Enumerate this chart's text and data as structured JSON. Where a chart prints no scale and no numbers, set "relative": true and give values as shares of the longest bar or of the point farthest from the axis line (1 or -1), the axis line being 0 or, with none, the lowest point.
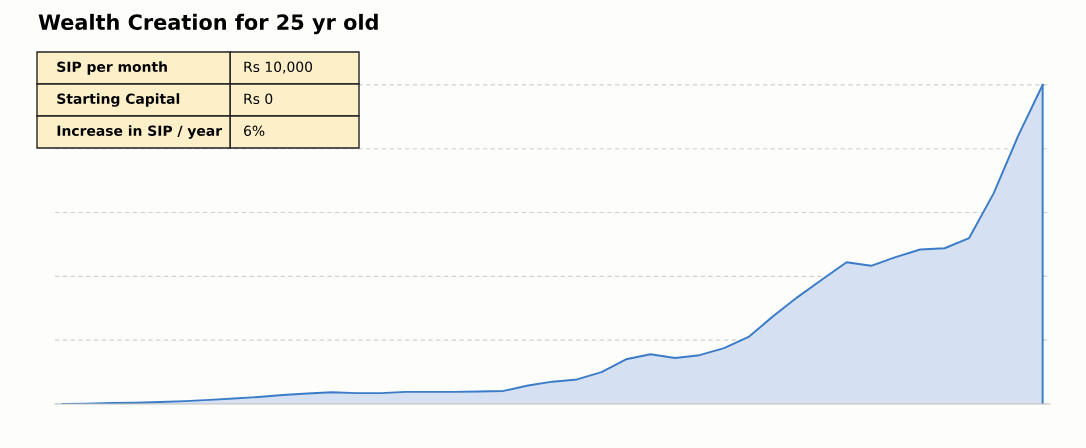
{
  "chart_data": {
    "type": "area",
    "title": "Wealth Creation for 25 yr old",
    "relative": true,
    "grid": "y",
    "color": "#3a7cc8",
    "categories": [
      null,
      null,
      null,
      null,
      null,
      null,
      null,
      null,
      null,
      null,
      null,
      null,
      null,
      null,
      null,
      null,
      null,
      null,
      null,
      null,
      null,
      null,
      null,
      null,
      null,
      null,
      null,
      null,
      null,
      null,
      null,
      null,
      null,
      null,
      null,
      null,
      null,
      null,
      null,
      null,
      null
    ],
    "values": [
      0,
      0.001,
      0.003,
      0.004,
      0.006,
      0.009,
      0.013,
      0.017,
      0.022,
      0.028,
      0.033,
      0.037,
      0.034,
      0.034,
      0.038,
      0.038,
      0.038,
      0.039,
      0.041,
      0.058,
      0.07,
      0.077,
      0.1,
      0.14,
      0.156,
      0.144,
      0.153,
      0.175,
      0.21,
      0.275,
      0.335,
      0.39,
      0.444,
      0.433,
      0.46,
      0.484,
      0.488,
      0.52,
      0.66,
      0.84,
      1.0
    ],
    "annotations": [
      "SIP per month",
      "Rs 10,000",
      "Starting Capital",
      "Rs 0",
      "Increase in SIP / year",
      "6%"
    ]
  }
}
